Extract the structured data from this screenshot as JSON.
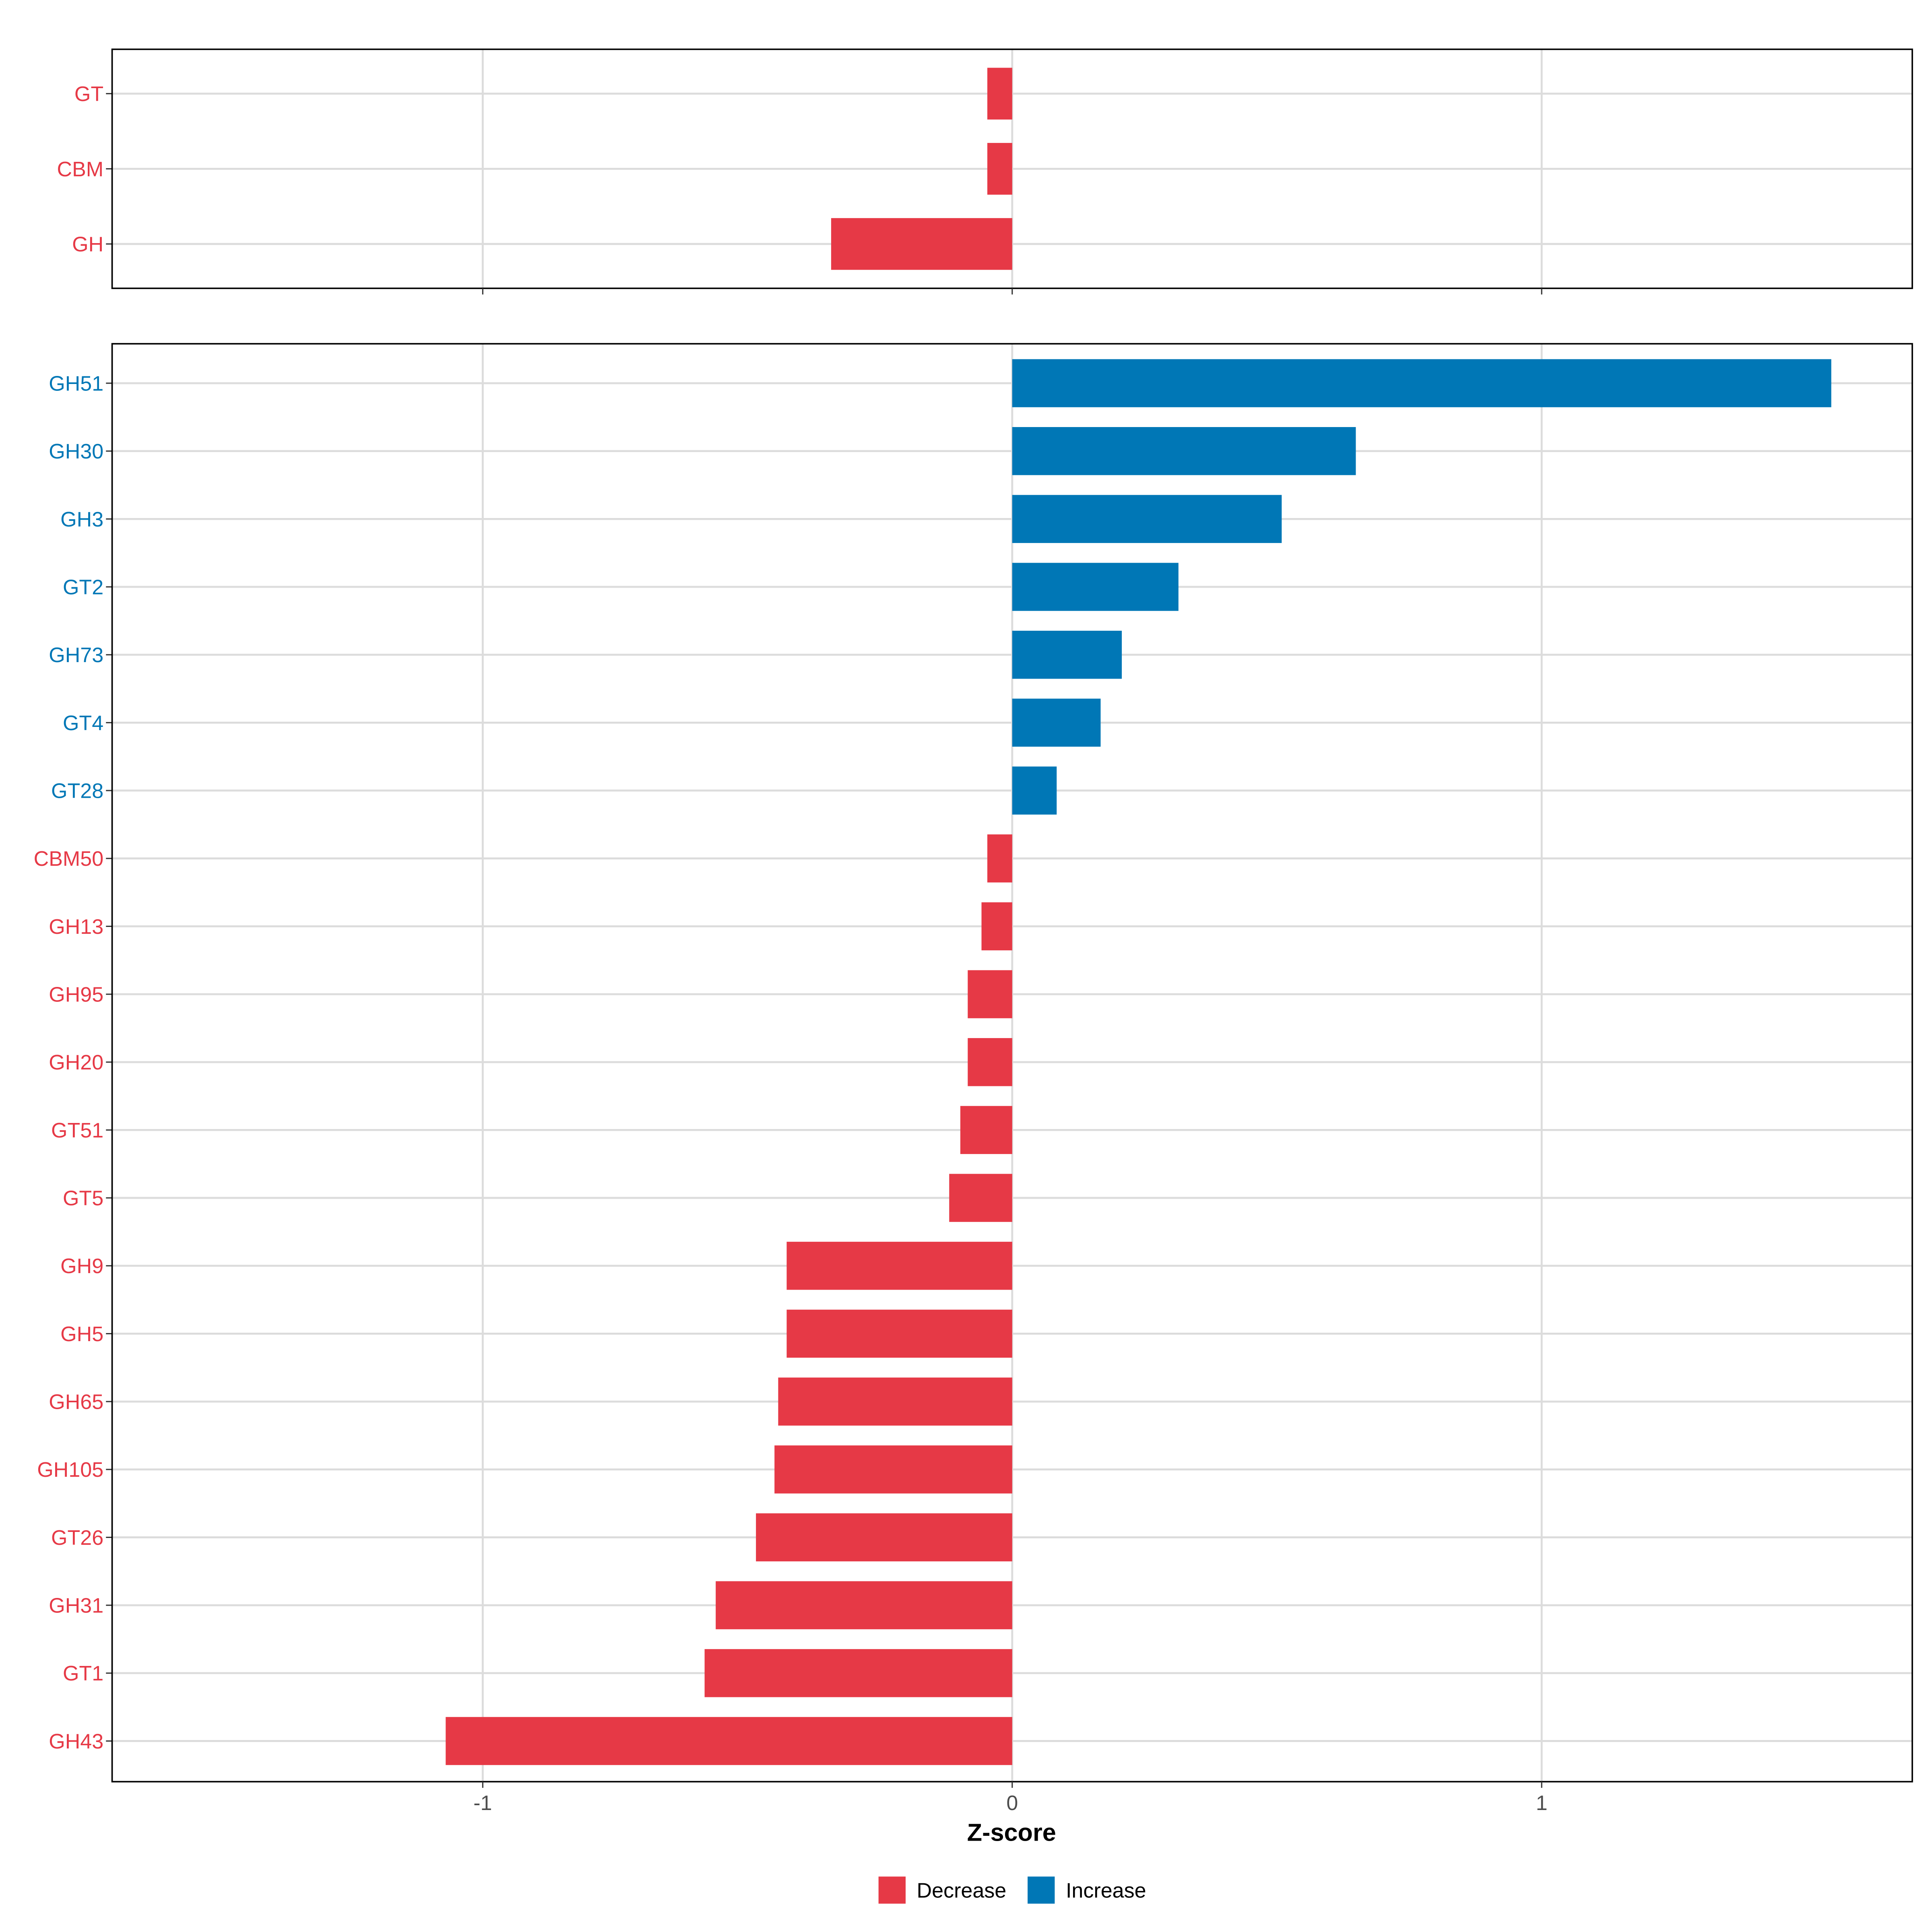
{
  "chart_data": [
    {
      "type": "bar",
      "orientation": "horizontal",
      "panel": "top",
      "categories": [
        "GT",
        "CBM",
        "GH"
      ],
      "values": [
        -0.047,
        -0.047,
        -0.342
      ],
      "xlim": [
        -1.7,
        1.7
      ],
      "xticks": [
        -1,
        0,
        1
      ],
      "grid": true
    },
    {
      "type": "bar",
      "orientation": "horizontal",
      "panel": "bottom",
      "categories": [
        "GH51",
        "GH30",
        "GH3",
        "GT2",
        "GH73",
        "GT4",
        "GT28",
        "CBM50",
        "GH13",
        "GH95",
        "GH20",
        "GT51",
        "GT5",
        "GH9",
        "GH5",
        "GH65",
        "GH105",
        "GT26",
        "GH31",
        "GT1",
        "GH43"
      ],
      "values": [
        1.547,
        0.649,
        0.509,
        0.314,
        0.207,
        0.167,
        0.084,
        -0.047,
        -0.058,
        -0.084,
        -0.084,
        -0.098,
        -0.119,
        -0.426,
        -0.426,
        -0.442,
        -0.449,
        -0.484,
        -0.56,
        -0.581,
        -1.07
      ],
      "xlim": [
        -1.7,
        1.7
      ],
      "xticks": [
        -1,
        0,
        1
      ],
      "xtick_labels": [
        "-1",
        "0",
        "1"
      ],
      "xlabel": "Z-score",
      "grid": true
    }
  ],
  "legend": {
    "placement": "bottom",
    "items": [
      {
        "label": "Decrease",
        "color": "#E63946"
      },
      {
        "label": "Increase",
        "color": "#0077B6"
      }
    ]
  }
}
